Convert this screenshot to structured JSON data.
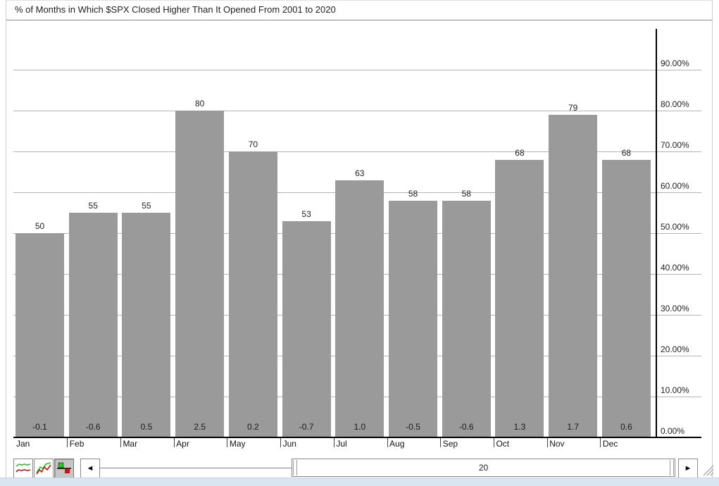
{
  "chart_data": {
    "type": "bar",
    "title": "% of Months in Which $SPX Closed Higher Than It Opened From 2001 to 2020",
    "categories": [
      "Jan",
      "Feb",
      "Mar",
      "Apr",
      "May",
      "Jun",
      "Jul",
      "Aug",
      "Sep",
      "Oct",
      "Nov",
      "Dec"
    ],
    "values": [
      50,
      55,
      55,
      80,
      70,
      53,
      63,
      58,
      58,
      68,
      79,
      68
    ],
    "bar_top_labels": [
      "50",
      "55",
      "55",
      "80",
      "70",
      "53",
      "63",
      "58",
      "58",
      "68",
      "79",
      "68"
    ],
    "bar_bottom_labels": [
      "-0.1",
      "-0.6",
      "0.5",
      "2.5",
      "0.2",
      "-0.7",
      "1.0",
      "-0.5",
      "-0.6",
      "1.3",
      "1.7",
      "0.6"
    ],
    "ytick_labels": [
      "0.00%",
      "10.00%",
      "20.00%",
      "30.00%",
      "40.00%",
      "50.00%",
      "60.00%",
      "70.00%",
      "80.00%",
      "90.00%"
    ],
    "ylim": [
      0,
      100
    ],
    "xlabel": "",
    "ylabel": "",
    "grid": true,
    "legend": false,
    "y_axis_side": "right",
    "bar_color": "#9a9a9a",
    "gridline_color": "#b3b3b3",
    "axis_color": "#000000"
  },
  "toolbar": {
    "style_buttons": [
      {
        "name": "line-chart-style",
        "selected": false
      },
      {
        "name": "mountain-chart-style",
        "selected": false
      },
      {
        "name": "bar-chart-style",
        "selected": true
      }
    ],
    "scrollbar": {
      "left_arrow_glyph": "◄",
      "right_arrow_glyph": "►",
      "thumb_value": "20"
    }
  },
  "colors": {
    "bottom_strip": "#d9e6f2",
    "panel_border": "#cccccc",
    "pressed_button_bg": "#c6c6c6",
    "icon_green": "#22cc22",
    "icon_red": "#cc1111"
  }
}
